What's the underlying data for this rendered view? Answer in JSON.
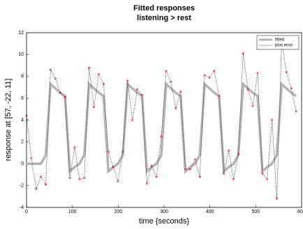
{
  "chart_data": {
    "type": "line",
    "title": "Fitted responses",
    "subtitle": "listening > rest",
    "xlabel": "time {seconds}",
    "ylabel": "response at [57, -22, 11]",
    "x": [
      0,
      10.5,
      21,
      31.5,
      42,
      52.5,
      63,
      73.5,
      84,
      94.5,
      105,
      115.5,
      126,
      136.5,
      147,
      157.5,
      168,
      178.5,
      189,
      199.5,
      210,
      220.5,
      231,
      241.5,
      252,
      262.5,
      273,
      283.5,
      294,
      304.5,
      315,
      325.5,
      336,
      346.5,
      357,
      367.5,
      378,
      388.5,
      399,
      409.5,
      420,
      430.5,
      441,
      451.5,
      462,
      472.5,
      483,
      493.5,
      504,
      514.5,
      525,
      535.5,
      546,
      556.5,
      567,
      577.5,
      588
    ],
    "series": [
      {
        "name": "fitted",
        "color": "#b4b4b4",
        "values": [
          0,
          0,
          0,
          0,
          0.8,
          7.3,
          6.9,
          6.5,
          6.2,
          -0.7,
          -0.3,
          0,
          0.8,
          7.3,
          6.9,
          6.5,
          6.2,
          -0.7,
          -0.3,
          0,
          0.8,
          7.3,
          6.9,
          6.5,
          6.2,
          -0.7,
          -0.3,
          0,
          0.8,
          7.3,
          6.9,
          6.5,
          6.2,
          -0.7,
          -0.3,
          0,
          0.8,
          7.3,
          6.9,
          6.5,
          6.2,
          -0.7,
          -0.3,
          0,
          0.8,
          7.3,
          6.9,
          6.5,
          6.2,
          -0.7,
          -0.3,
          0,
          0.8,
          7.3,
          6.9,
          6.5,
          6.2
        ]
      },
      {
        "name": "plus error",
        "color": "#000000",
        "marker_color": "#ff0000",
        "values": [
          4.4,
          0.5,
          -2.3,
          -1.2,
          -1.9,
          8.6,
          7.8,
          6.5,
          6.1,
          -1.3,
          1.5,
          -1.4,
          -1.3,
          8.8,
          5.2,
          8.2,
          7.3,
          1.1,
          -0.3,
          -1.6,
          1.1,
          7.6,
          4.0,
          6.8,
          6.3,
          -1.8,
          -0.2,
          -1.2,
          2.5,
          8.5,
          7.5,
          5.1,
          6.6,
          -0.5,
          -0.5,
          0.4,
          -1.2,
          8.1,
          7.9,
          8.5,
          6.2,
          -0.9,
          1.2,
          -1.4,
          0.9,
          10.1,
          6.8,
          5.3,
          8.3,
          -0.9,
          -1.4,
          4.0,
          -3.2,
          11.2,
          8.4,
          6.9,
          4.8
        ]
      }
    ],
    "xlim": [
      0,
      600
    ],
    "xticks": [
      0,
      100,
      200,
      300,
      400,
      500,
      600
    ],
    "ylim": [
      -4,
      12
    ],
    "yticks": [
      -4,
      -2,
      0,
      2,
      4,
      6,
      8,
      10,
      12
    ],
    "legend": "upper right"
  }
}
